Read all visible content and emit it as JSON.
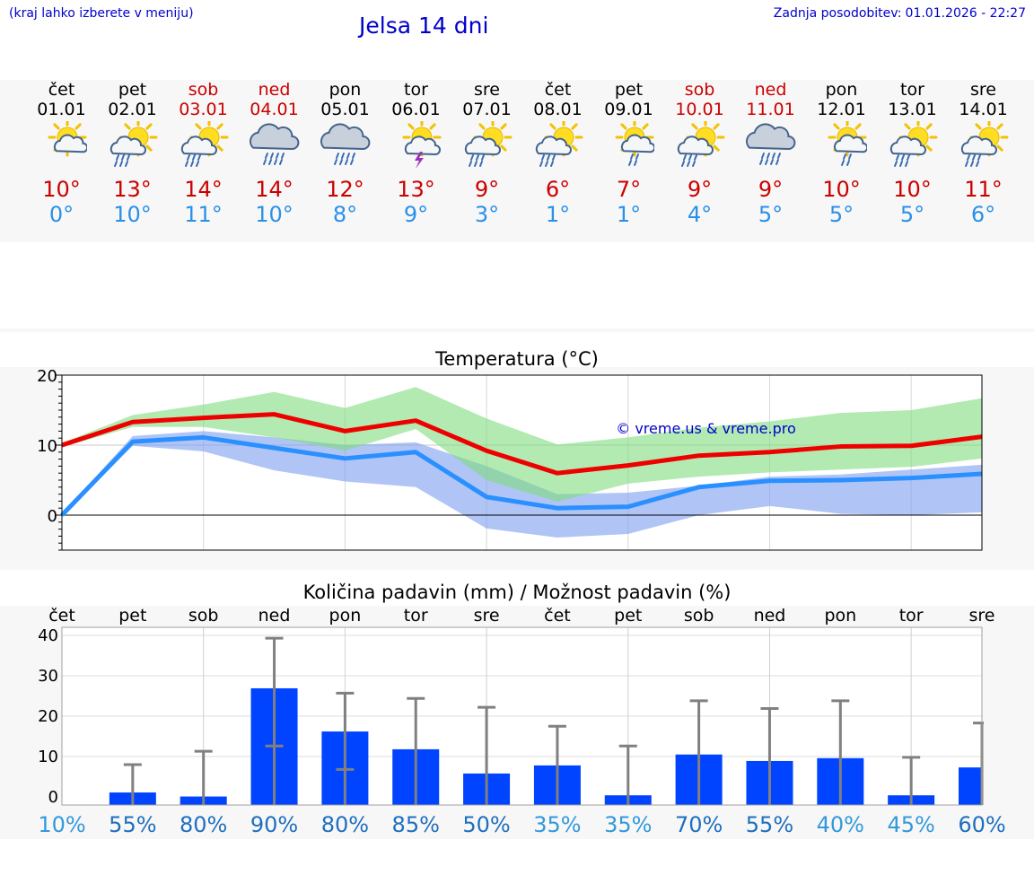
{
  "header": {
    "hint": "(kraj lahko izberete v meniju)",
    "title": "Jelsa 14 dni",
    "updated_label": "Zadnja posodobitev:",
    "updated_value": "01.01.2026 - 22:27"
  },
  "days": [
    {
      "name": "čet",
      "date": "01.01",
      "weekend": false,
      "icon": "sun-cloud-icon",
      "tmax": "10°",
      "tmin": "0°"
    },
    {
      "name": "pet",
      "date": "02.01",
      "weekend": false,
      "icon": "sun-cloud-rain-icon",
      "tmax": "13°",
      "tmin": "10°"
    },
    {
      "name": "sob",
      "date": "03.01",
      "weekend": true,
      "icon": "sun-cloud-rain-icon",
      "tmax": "14°",
      "tmin": "11°"
    },
    {
      "name": "ned",
      "date": "04.01",
      "weekend": true,
      "icon": "cloud-heavy-rain-icon",
      "tmax": "14°",
      "tmin": "10°"
    },
    {
      "name": "pon",
      "date": "05.01",
      "weekend": false,
      "icon": "cloud-heavy-rain-icon",
      "tmax": "12°",
      "tmin": "8°"
    },
    {
      "name": "tor",
      "date": "06.01",
      "weekend": false,
      "icon": "sun-cloud-thunder-icon",
      "tmax": "13°",
      "tmin": "9°"
    },
    {
      "name": "sre",
      "date": "07.01",
      "weekend": false,
      "icon": "sun-cloud-rain-icon",
      "tmax": "9°",
      "tmin": "3°"
    },
    {
      "name": "čet",
      "date": "08.01",
      "weekend": false,
      "icon": "sun-cloud-rain-icon",
      "tmax": "6°",
      "tmin": "1°"
    },
    {
      "name": "pet",
      "date": "09.01",
      "weekend": false,
      "icon": "sun-cloud-light-rain-icon",
      "tmax": "7°",
      "tmin": "1°"
    },
    {
      "name": "sob",
      "date": "10.01",
      "weekend": true,
      "icon": "sun-cloud-rain-icon",
      "tmax": "9°",
      "tmin": "4°"
    },
    {
      "name": "ned",
      "date": "11.01",
      "weekend": true,
      "icon": "cloud-heavy-rain-icon",
      "tmax": "9°",
      "tmin": "5°"
    },
    {
      "name": "pon",
      "date": "12.01",
      "weekend": false,
      "icon": "sun-cloud-light-rain-icon",
      "tmax": "10°",
      "tmin": "5°"
    },
    {
      "name": "tor",
      "date": "13.01",
      "weekend": false,
      "icon": "sun-cloud-rain-icon",
      "tmax": "10°",
      "tmin": "5°"
    },
    {
      "name": "sre",
      "date": "14.01",
      "weekend": false,
      "icon": "sun-cloud-rain-icon",
      "tmax": "11°",
      "tmin": "6°"
    }
  ],
  "watermark": "© vreme.us & vreme.pro",
  "colors": {
    "max_line": "#ee0000",
    "min_line": "#2a90ff",
    "max_band": "#7fdc7f",
    "min_band": "#7b9ef0",
    "bar": "#0044ff",
    "error": "#808080",
    "weekend": "#cc0000",
    "link": "#0000cc"
  },
  "chart_data": [
    {
      "type": "line",
      "title": "Temperatura (°C)",
      "x_count": 14,
      "ylim": [
        -5,
        20
      ],
      "yticks": [
        0,
        10,
        20
      ],
      "series": [
        {
          "name": "max",
          "values": [
            10,
            13.3,
            13.9,
            14.4,
            12,
            13.5,
            9.2,
            6,
            7.1,
            8.5,
            9,
            9.8,
            9.9,
            11.2
          ]
        },
        {
          "name": "min",
          "values": [
            0,
            10.5,
            11.1,
            9.6,
            8.1,
            9,
            2.6,
            1,
            1.2,
            4,
            4.9,
            5,
            5.3,
            5.9
          ]
        }
      ],
      "bands": [
        {
          "name": "max_range_high",
          "values": [
            10.3,
            14.3,
            15.8,
            17.6,
            15.3,
            18.3,
            13.8,
            10.1,
            11.1,
            12.5,
            13.4,
            14.6,
            15,
            16.7
          ]
        },
        {
          "name": "max_range_low",
          "values": [
            9.7,
            12.6,
            12.6,
            11.1,
            9.2,
            12.3,
            5,
            1.9,
            4.5,
            5.5,
            6.1,
            6.5,
            6.9,
            8.1
          ]
        },
        {
          "name": "min_range_high",
          "values": [
            0.2,
            11.3,
            12,
            11.1,
            10,
            10.4,
            7,
            3,
            3.2,
            4.2,
            5.5,
            5.8,
            6.5,
            7.2
          ]
        },
        {
          "name": "min_range_low",
          "values": [
            -0.2,
            9.9,
            9.1,
            6.4,
            4.8,
            4,
            -1.9,
            -3.2,
            -2.7,
            0,
            1.3,
            0.2,
            0,
            0.4
          ]
        }
      ]
    },
    {
      "type": "bar",
      "title": "Količina padavin (mm) / Možnost padavin (%)",
      "categories": [
        "čet",
        "pet",
        "sob",
        "ned",
        "pon",
        "tor",
        "sre",
        "čet",
        "pet",
        "sob",
        "ned",
        "pon",
        "tor",
        "sre"
      ],
      "values": [
        0,
        1.1,
        0.1,
        26.9,
        16.2,
        11.8,
        5.8,
        7.8,
        0.4,
        10.5,
        8.9,
        9.6,
        0.4,
        7.3
      ],
      "err_low": [
        0,
        0,
        0,
        12.6,
        6.8,
        0,
        0,
        0,
        0,
        0,
        0,
        0,
        0,
        0
      ],
      "err_high": [
        0,
        8,
        11.3,
        39.3,
        25.7,
        24.4,
        22.2,
        17.5,
        12.6,
        23.8,
        21.9,
        23.8,
        9.8,
        18.3
      ],
      "chance": [
        "10%",
        "55%",
        "80%",
        "90%",
        "80%",
        "85%",
        "50%",
        "35%",
        "35%",
        "70%",
        "55%",
        "40%",
        "45%",
        "60%"
      ],
      "chance_colors": [
        "#3399dd",
        "#1f6fbf",
        "#1f6fbf",
        "#1f6fbf",
        "#1f6fbf",
        "#1f6fbf",
        "#1f6fbf",
        "#3399dd",
        "#3399dd",
        "#1f6fbf",
        "#1f6fbf",
        "#3399dd",
        "#3399dd",
        "#1f6fbf"
      ],
      "ylim": [
        -2,
        42
      ],
      "yticks": [
        0,
        10,
        20,
        30,
        40
      ]
    }
  ]
}
